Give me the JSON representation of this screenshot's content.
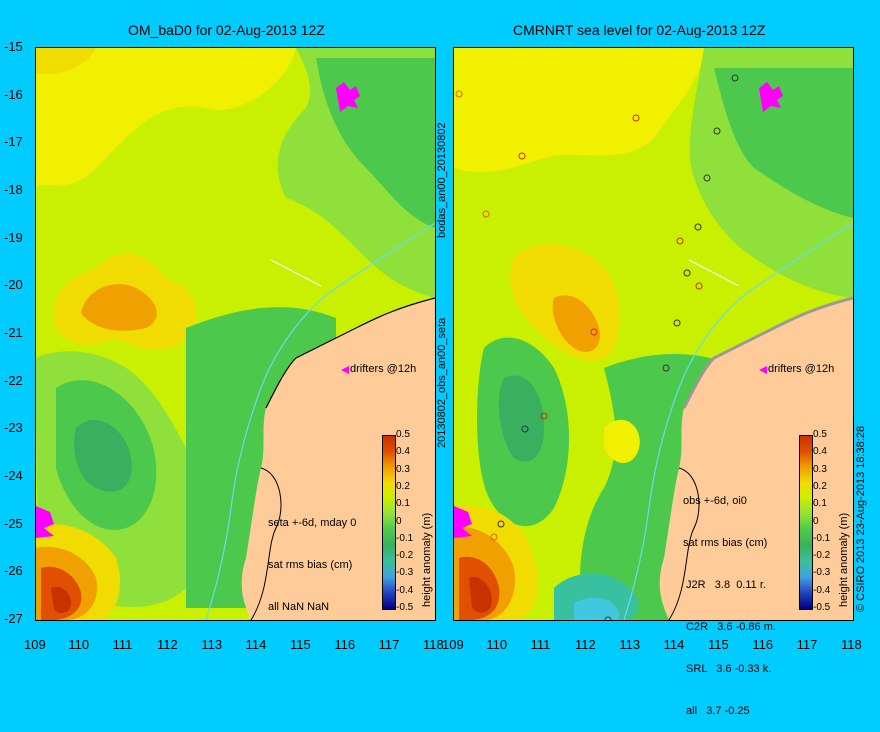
{
  "left_panel": {
    "title": "OM_baD0 for 02-Aug-2013 12Z",
    "drifters_label": "drifters @12h",
    "info_lines": [
      "seta +-6d, mday 0",
      "sat rms bias (cm)",
      "all NaN NaN"
    ],
    "colorbar_label": "height anomaly (m)"
  },
  "right_panel": {
    "title": "CMRNRT sea level  for 02-Aug-2013 12Z",
    "drifters_label": "drifters @12h",
    "info_lines": [
      "obs +-6d, oi0",
      "sat rms bias (cm)",
      " J2R   3.8  0.11 r.",
      " C2R   3.6 -0.86 m.",
      " SRL   3.6 -0.33 k.",
      " all   3.7 -0.25"
    ],
    "colorbar_label": "height anomaly (m)"
  },
  "side_labels": {
    "upper": "bodas_an00_20130802",
    "lower": "20130802_obs_an00_seta",
    "copyright": "© CSIRO 2013  23-Aug-2013 18:38:28"
  },
  "y_ticks": [
    "-15",
    "-16",
    "-17",
    "-18",
    "-19",
    "-20",
    "-21",
    "-22",
    "-23",
    "-24",
    "-25",
    "-26",
    "-27"
  ],
  "x_ticks": [
    "109",
    "110",
    "111",
    "112",
    "113",
    "114",
    "115",
    "116",
    "117",
    "118"
  ],
  "colorbar_ticks": [
    "0.5",
    "0.4",
    "0.3",
    "0.2",
    "0.1",
    "0",
    "-0.1",
    "-0.2",
    "-0.3",
    "-0.4",
    "-0.5"
  ],
  "colors": {
    "background": "#00ccff",
    "land": "#ffcc99",
    "green": "#4cc84c",
    "light_green": "#8fe03a",
    "yellow_green": "#c8f000",
    "yellow": "#f0f000",
    "orange": "#f0a000",
    "dark_red": "#c83200",
    "drifter": "#ff00ff"
  }
}
